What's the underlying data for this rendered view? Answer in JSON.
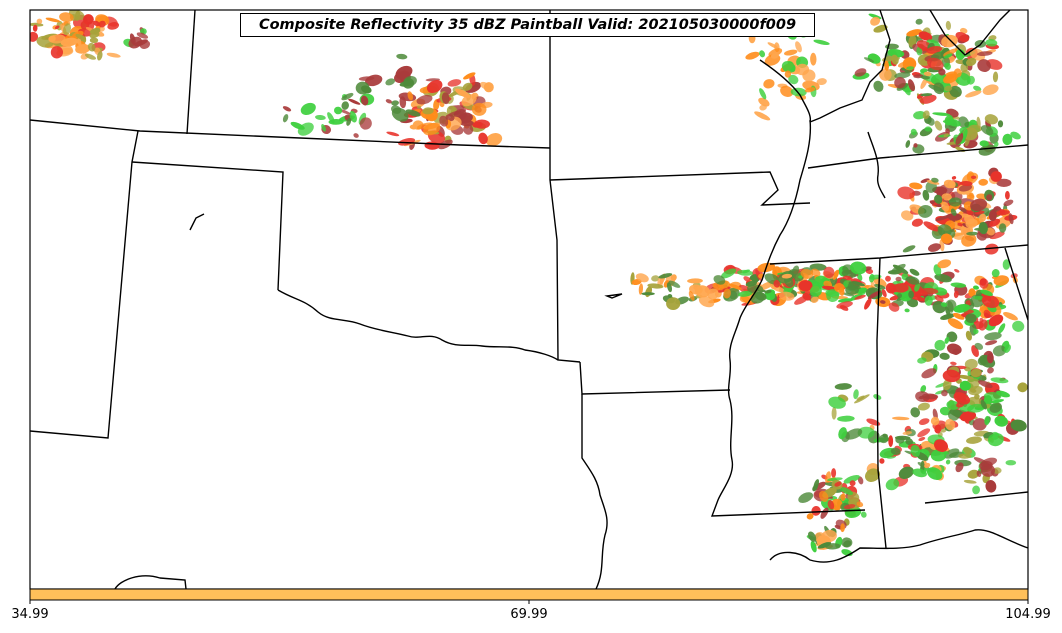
{
  "title": "Composite Reflectivity 35 dBZ Paintball Valid: 202105030000f009",
  "colorbar": {
    "fill_color": "#FFC05A",
    "ticks": [
      "34.99",
      "69.99",
      "104.99"
    ]
  },
  "colors": {
    "red": "#E8332B",
    "dark_red": "#A93B3B",
    "orange": "#FF8C1A",
    "light_orange": "#FFA64D",
    "green": "#3DCF3D",
    "dark_green": "#4E8A3A",
    "olive": "#A7A33B",
    "boundary": "#000000"
  }
}
